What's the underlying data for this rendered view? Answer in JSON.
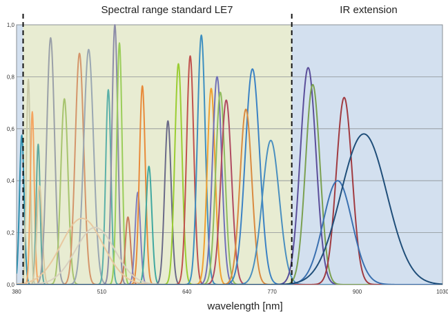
{
  "chart_data": {
    "type": "line",
    "xlabel": "wavelength [nm]",
    "ylabel": "",
    "xlim": [
      380,
      1030
    ],
    "ylim": [
      0,
      1.0
    ],
    "x_ticks": [
      "380",
      "510",
      "640",
      "770",
      "900",
      "1030"
    ],
    "y_ticks": [
      "0,0",
      "0,2",
      "0,4",
      "0,6",
      "0,8",
      "1,0"
    ],
    "grid": "horizontal",
    "regions": [
      {
        "label": "Spectral range standard LE7",
        "from": 390,
        "to": 800,
        "color": "#e8ecd2"
      },
      {
        "label": "IR extension",
        "from": 800,
        "to": 1030,
        "color": "#d3e0ef"
      }
    ],
    "outer_background": "#d3e0ef",
    "boundaries": [
      390,
      800
    ],
    "series": [
      {
        "peak": 388,
        "amp": 0.575,
        "width": 3.5,
        "color": "#2e8fae"
      },
      {
        "peak": 398,
        "amp": 0.79,
        "width": 3,
        "color": "#c9c9a8"
      },
      {
        "peak": 404,
        "amp": 0.665,
        "width": 3,
        "color": "#f4a460"
      },
      {
        "peak": 413,
        "amp": 0.54,
        "width": 3,
        "color": "#5fa8a0"
      },
      {
        "peak": 415,
        "amp": 0.38,
        "width": 4,
        "color": "#d9c8a0"
      },
      {
        "peak": 432,
        "amp": 0.95,
        "width": 6,
        "color": "#9aa0a8"
      },
      {
        "peak": 453,
        "amp": 0.715,
        "width": 5.5,
        "color": "#a7c46e"
      },
      {
        "peak": 476,
        "amp": 0.89,
        "width": 6.5,
        "color": "#d4956a"
      },
      {
        "peak": 490,
        "amp": 0.905,
        "width": 7.5,
        "color": "#9aa7b2"
      },
      {
        "peak": 520,
        "amp": 0.75,
        "width": 4,
        "color": "#5bb0a8"
      },
      {
        "peak": 530,
        "amp": 1.0,
        "width": 4.5,
        "color": "#8c8ca8"
      },
      {
        "peak": 537,
        "amp": 0.93,
        "width": 4,
        "color": "#9acd5a"
      },
      {
        "peak": 550,
        "amp": 0.26,
        "width": 4,
        "color": "#c97a5a"
      },
      {
        "peak": 565,
        "amp": 0.355,
        "width": 4,
        "color": "#7f7fbf"
      },
      {
        "peak": 572,
        "amp": 0.765,
        "width": 4.5,
        "color": "#e88a3a"
      },
      {
        "peak": 582,
        "amp": 0.455,
        "width": 4.5,
        "color": "#40a8a0"
      },
      {
        "peak": 611,
        "amp": 0.63,
        "width": 5,
        "color": "#6a6a88"
      },
      {
        "peak": 627,
        "amp": 0.85,
        "width": 5.5,
        "color": "#9acd32"
      },
      {
        "peak": 645,
        "amp": 0.88,
        "width": 5.5,
        "color": "#c0504d"
      },
      {
        "peak": 662,
        "amp": 0.96,
        "width": 6,
        "color": "#3d8fc0"
      },
      {
        "peak": 677,
        "amp": 0.755,
        "width": 6,
        "color": "#f0a030"
      },
      {
        "peak": 480,
        "amp": 0.255,
        "width": 32,
        "color": "#e8c8a0"
      },
      {
        "peak": 500,
        "amp": 0.22,
        "width": 30,
        "color": "#d8d0c0"
      },
      {
        "peak": 686,
        "amp": 0.8,
        "width": 7,
        "color": "#7070b8"
      },
      {
        "peak": 691,
        "amp": 0.74,
        "width": 7,
        "color": "#8fbc5f"
      },
      {
        "peak": 700,
        "amp": 0.71,
        "width": 8,
        "color": "#b04a60"
      },
      {
        "peak": 740,
        "amp": 0.83,
        "width": 11,
        "color": "#3b82c4"
      },
      {
        "peak": 730,
        "amp": 0.675,
        "width": 9,
        "color": "#d98a40"
      },
      {
        "peak": 768,
        "amp": 0.555,
        "width": 13,
        "color": "#4a8fbf"
      },
      {
        "peak": 825,
        "amp": 0.835,
        "width": 12,
        "color": "#5a4e9a"
      },
      {
        "peak": 832,
        "amp": 0.77,
        "width": 11,
        "color": "#7aa050"
      },
      {
        "peak": 880,
        "amp": 0.72,
        "width": 12,
        "color": "#a03a40"
      },
      {
        "peak": 870,
        "amp": 0.4,
        "width": 22,
        "color": "#3a70b0"
      },
      {
        "peak": 910,
        "amp": 0.58,
        "width": 35,
        "color": "#1f4e79"
      }
    ]
  }
}
